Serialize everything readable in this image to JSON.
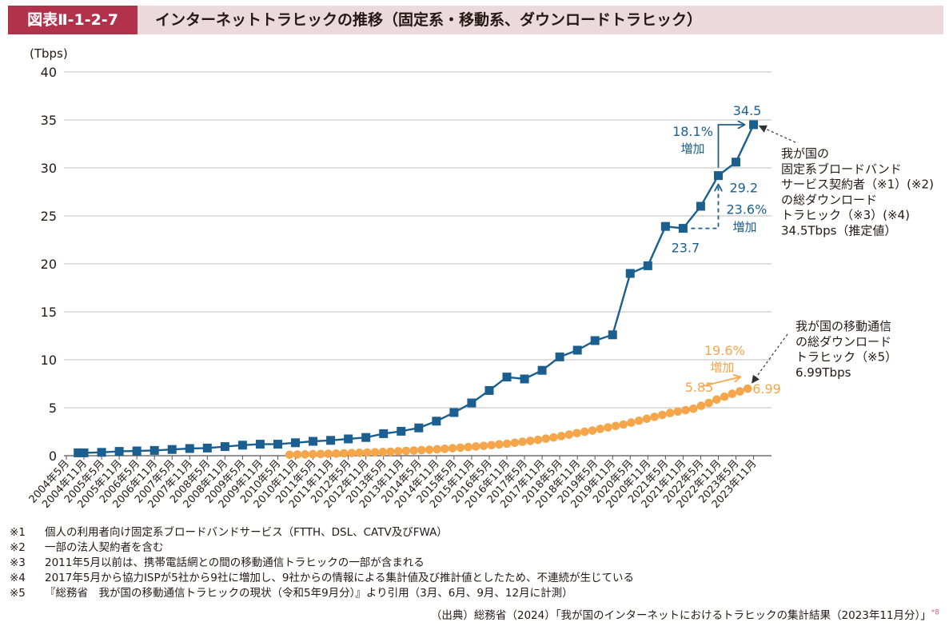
{
  "header": {
    "figure_id": "図表Ⅱ-1-2-7",
    "title": "インターネットトラヒックの推移（固定系・移動系、ダウンロードトラヒック）"
  },
  "colors": {
    "fixed": "#1a5f8f",
    "mobile": "#f5a54a",
    "header_bar": "#b2324b",
    "header_bg": "#ecd9dc"
  },
  "chart_data": {
    "type": "line",
    "y_unit": "(Tbps)",
    "ylim": [
      0,
      40
    ],
    "yticks": [
      "0",
      "5",
      "10",
      "15",
      "20",
      "25",
      "30",
      "35",
      "40"
    ],
    "grid": true,
    "tick_labels": [
      "2004年5月",
      "2004年11月",
      "2005年5月",
      "2005年11月",
      "2006年5月",
      "2006年11月",
      "2007年5月",
      "2007年11月",
      "2008年5月",
      "2008年11月",
      "2009年5月",
      "2009年11月",
      "2010年5月",
      "2010年11月",
      "2011年5月",
      "2011年11月",
      "2012年5月",
      "2012年11月",
      "2013年5月",
      "2013年11月",
      "2014年5月",
      "2014年11月",
      "2015年5月",
      "2015年11月",
      "2016年5月",
      "2016年11月",
      "2017年5月",
      "2017年11月",
      "2018年5月",
      "2018年11月",
      "2019年5月",
      "2019年11月",
      "2020年5月",
      "2020年11月",
      "2021年5月",
      "2021年11月",
      "2022年5月",
      "2022年11月",
      "2023年5月",
      "2023年11月"
    ],
    "series": [
      {
        "key": "fixed",
        "x": [
          "2004年9月",
          "2004年11月",
          "2005年5月",
          "2005年11月",
          "2006年5月",
          "2006年11月",
          "2007年5月",
          "2007年11月",
          "2008年5月",
          "2008年11月",
          "2009年5月",
          "2009年11月",
          "2010年5月",
          "2010年11月",
          "2011年5月",
          "2011年11月",
          "2012年5月",
          "2012年11月",
          "2013年5月",
          "2013年11月",
          "2014年5月",
          "2014年11月",
          "2015年5月",
          "2015年11月",
          "2016年5月",
          "2016年11月",
          "2017年5月",
          "2017年11月",
          "2018年5月",
          "2018年11月",
          "2019年5月",
          "2019年11月",
          "2020年5月",
          "2020年11月",
          "2021年5月",
          "2021年11月",
          "2022年5月",
          "2022年11月",
          "2023年5月",
          "2023年11月"
        ],
        "values": [
          0.3,
          0.3,
          0.35,
          0.45,
          0.5,
          0.55,
          0.65,
          0.75,
          0.8,
          0.95,
          1.1,
          1.2,
          1.2,
          1.35,
          1.5,
          1.6,
          1.75,
          1.9,
          2.3,
          2.55,
          2.9,
          3.6,
          4.5,
          5.5,
          6.8,
          8.2,
          8.0,
          8.9,
          10.3,
          11.0,
          12.0,
          12.6,
          19.0,
          19.8,
          23.9,
          23.7,
          26.0,
          29.2,
          30.6,
          34.5
        ]
      },
      {
        "key": "mobile",
        "x_start": "2010年9月",
        "x_end": "2023年9月",
        "values": [
          0.1,
          0.12,
          0.14,
          0.16,
          0.18,
          0.2,
          0.22,
          0.25,
          0.28,
          0.3,
          0.33,
          0.36,
          0.39,
          0.42,
          0.46,
          0.5,
          0.54,
          0.58,
          0.62,
          0.67,
          0.72,
          0.78,
          0.84,
          0.9,
          0.96,
          1.03,
          1.1,
          1.18,
          1.25,
          1.35,
          1.45,
          1.55,
          1.65,
          1.78,
          1.9,
          2.05,
          2.2,
          2.35,
          2.5,
          2.62,
          2.8,
          2.95,
          3.1,
          3.25,
          3.45,
          3.65,
          3.85,
          4.05,
          4.25,
          4.45,
          4.6,
          4.75,
          4.9,
          5.2,
          5.5,
          5.85,
          6.15,
          6.45,
          6.7,
          6.99
        ]
      }
    ],
    "annotations": {
      "fixed_last": "34.5",
      "fixed_prev_year": "29.2",
      "fixed_2021": "23.7",
      "fixed_growth_2023": "18.1%",
      "fixed_growth_2023_word": "増加",
      "fixed_growth_2022": "23.6%",
      "fixed_growth_2022_word": "増加",
      "mobile_last": "6.99",
      "mobile_prev_year": "5.85",
      "mobile_growth": "19.6%",
      "mobile_growth_word": "増加"
    },
    "callouts": {
      "fixed": [
        "我が国の",
        "固定系ブロードバンド",
        "サービス契約者（※1）(※2)",
        "の総ダウンロード",
        "トラヒック（※3）(※4)",
        "34.5Tbps（推定値）"
      ],
      "mobile": [
        "我が国の移動通信",
        "の総ダウンロード",
        "トラヒック（※5）",
        "6.99Tbps"
      ]
    }
  },
  "notes": [
    {
      "mark": "※1",
      "text": "個人の利用者向け固定系ブロードバンドサービス（FTTH、DSL、CATV及びFWA）"
    },
    {
      "mark": "※2",
      "text": "一部の法人契約者を含む"
    },
    {
      "mark": "※3",
      "text": "2011年5月以前は、携帯電話網との間の移動通信トラヒックの一部が含まれる"
    },
    {
      "mark": "※4",
      "text": "2017年5月から協力ISPが5社から9社に増加し、9社からの情報による集計値及び推計値としたため、不連続が生じている"
    },
    {
      "mark": "※5",
      "text": "『総務省　我が国の移動通信トラヒックの現状（令和5年9月分）』より引用（3月、6月、9月、12月に計測）"
    }
  ],
  "source": {
    "text": "（出典）総務省（2024）「我が国のインターネットにおけるトラヒックの集計結果（2023年11月分）」",
    "ref": "*8"
  }
}
